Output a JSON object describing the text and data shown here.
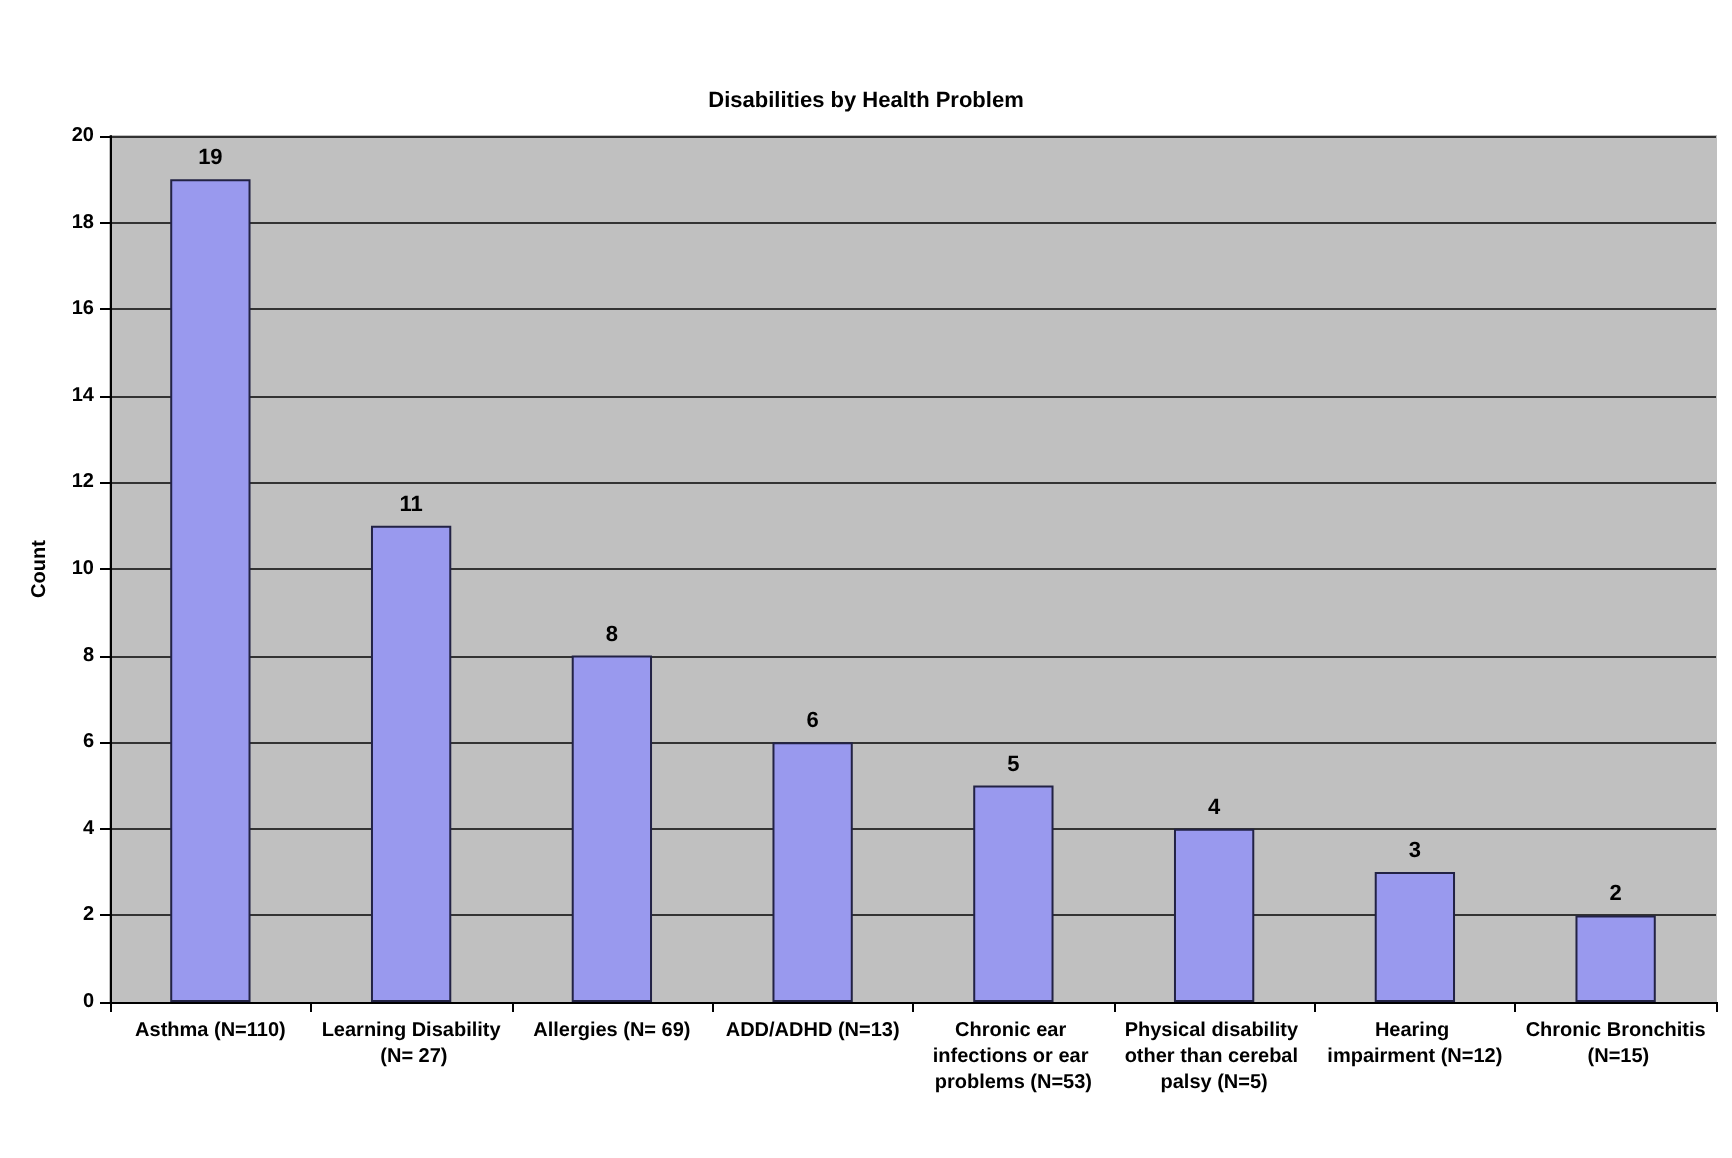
{
  "chart_data": {
    "type": "bar",
    "title": "Disabilities by Health Problem",
    "ylabel": "Count",
    "categories": [
      "Asthma (N=110)",
      "Learning Disability (N= 27)",
      "Allergies (N= 69)",
      "ADD/ADHD (N=13)",
      "Chronic ear infections or ear problems (N=53)",
      "Physical disability other than cerebal palsy (N=5)",
      "Hearing impairment (N=12)",
      "Chronic Bronchitis (N=15)"
    ],
    "values": [
      19,
      11,
      8,
      6,
      5,
      4,
      3,
      2
    ],
    "color": "#9999ee",
    "ylim": [
      0,
      20
    ],
    "yticks": [
      0,
      2,
      4,
      6,
      8,
      10,
      12,
      14,
      16,
      18,
      20
    ],
    "grid": "y",
    "data_labels": true
  }
}
